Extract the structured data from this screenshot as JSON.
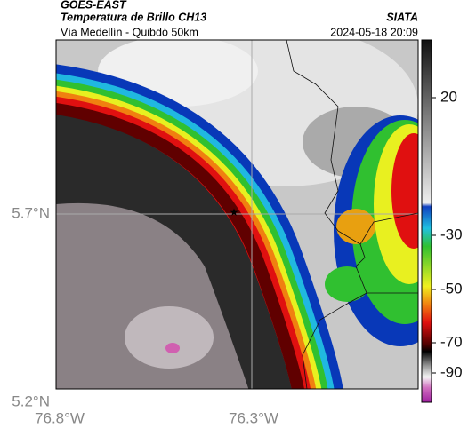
{
  "header": {
    "title": "GOES-EAST",
    "subtitle": "Temperatura de Brillo CH13",
    "location": "Vía Medellín - Quibdó 50km",
    "source": "SIATA",
    "timestamp": "2024-05-18 20:09"
  },
  "map": {
    "lat_labels": [
      "5.7°N",
      "5.2°N"
    ],
    "lon_labels": [
      "76.8°W",
      "76.3°W"
    ],
    "colorbar_ticks": [
      20,
      -30,
      -50,
      -70,
      -90
    ]
  }
}
